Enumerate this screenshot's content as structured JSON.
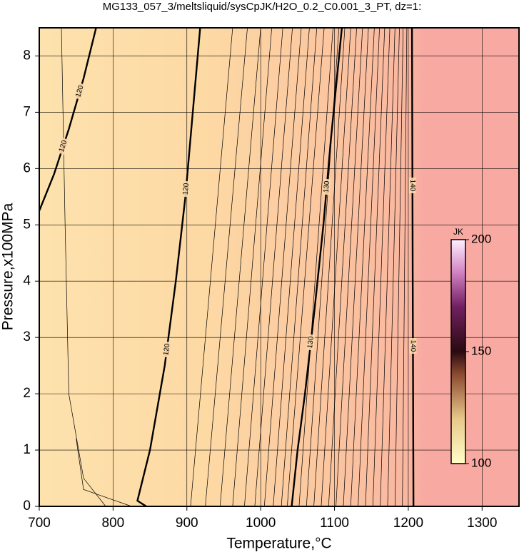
{
  "chart_data": {
    "type": "contour",
    "title": "MG133_057_3/meltsliquid/sysCpJK/H2O_0.2_C0.001_3_PT, dz=1:",
    "x_label": "Temperature,°C",
    "y_label": "Pressure,x100MPa",
    "xlim": [
      700,
      1350
    ],
    "ylim": [
      0,
      8.5
    ],
    "xticks": [
      700,
      800,
      900,
      1000,
      1100,
      1200,
      1300
    ],
    "yticks": [
      0,
      1,
      2,
      3,
      4,
      5,
      6,
      7,
      8
    ],
    "grid": true,
    "contours": [
      {
        "level": 120,
        "x": [
          700,
          720,
          740,
          760,
          777
        ],
        "y": [
          5.25,
          5.9,
          6.7,
          7.6,
          8.5
        ]
      },
      {
        "level": 120,
        "x": [
          845,
          833,
          850,
          870,
          885,
          898,
          908,
          918
        ],
        "y": [
          0,
          0.1,
          1,
          2.5,
          4,
          5.5,
          7,
          8.5
        ]
      },
      {
        "level": 130,
        "x": [
          1042,
          1050,
          1060,
          1073,
          1085,
          1095,
          1110
        ],
        "y": [
          0,
          1,
          2,
          3.5,
          5,
          6.5,
          8.5
        ]
      },
      {
        "level": 140,
        "x": [
          1207,
          1206,
          1205
        ],
        "y": [
          0,
          4,
          8.5
        ]
      }
    ],
    "minor_contours": [
      {
        "x": [
          905,
          962
        ],
        "y": [
          0,
          8.5
        ]
      },
      {
        "x": [
          925,
          982
        ],
        "y": [
          0,
          8.5
        ]
      },
      {
        "x": [
          945,
          1000
        ],
        "y": [
          0,
          8.5
        ]
      },
      {
        "x": [
          962,
          1015
        ],
        "y": [
          0,
          8.5
        ]
      },
      {
        "x": [
          978,
          1030
        ],
        "y": [
          0,
          8.5
        ]
      },
      {
        "x": [
          992,
          1043
        ],
        "y": [
          0,
          8.5
        ]
      },
      {
        "x": [
          1005,
          1055
        ],
        "y": [
          0,
          8.5
        ]
      },
      {
        "x": [
          1017,
          1066
        ],
        "y": [
          0,
          8.5
        ]
      },
      {
        "x": [
          1028,
          1076
        ],
        "y": [
          0,
          8.5
        ]
      },
      {
        "x": [
          1036,
          1086
        ],
        "y": [
          0,
          8.5
        ]
      },
      {
        "x": [
          1052,
          1098
        ],
        "y": [
          0,
          8.5
        ]
      },
      {
        "x": [
          1062,
          1106
        ],
        "y": [
          0,
          8.5
        ]
      },
      {
        "x": [
          1072,
          1114
        ],
        "y": [
          0,
          8.5
        ]
      },
      {
        "x": [
          1082,
          1122
        ],
        "y": [
          0,
          8.5
        ]
      },
      {
        "x": [
          1092,
          1130
        ],
        "y": [
          0,
          8.5
        ]
      },
      {
        "x": [
          1102,
          1138
        ],
        "y": [
          0,
          8.5
        ]
      },
      {
        "x": [
          1112,
          1146
        ],
        "y": [
          0,
          8.5
        ]
      },
      {
        "x": [
          1122,
          1154
        ],
        "y": [
          0,
          8.5
        ]
      },
      {
        "x": [
          1132,
          1161
        ],
        "y": [
          0,
          8.5
        ]
      },
      {
        "x": [
          1142,
          1168
        ],
        "y": [
          0,
          8.5
        ]
      },
      {
        "x": [
          1152,
          1175
        ],
        "y": [
          0,
          8.5
        ]
      },
      {
        "x": [
          1162,
          1182
        ],
        "y": [
          0,
          8.5
        ]
      },
      {
        "x": [
          1172,
          1188
        ],
        "y": [
          0,
          8.5
        ]
      },
      {
        "x": [
          1182,
          1193
        ],
        "y": [
          0,
          8.5
        ]
      },
      {
        "x": [
          1192,
          1198
        ],
        "y": [
          0,
          8.5
        ]
      },
      {
        "x": [
          790,
          760,
          740,
          735,
          730
        ],
        "y": [
          0,
          0.5,
          2,
          5,
          8.5
        ]
      },
      {
        "x": [
          825,
          760,
          750
        ],
        "y": [
          0,
          0.3,
          1.2
        ]
      }
    ],
    "colorbar": {
      "label": "JK",
      "lim": [
        100,
        200
      ],
      "ticks": [
        100,
        150,
        200
      ]
    }
  }
}
